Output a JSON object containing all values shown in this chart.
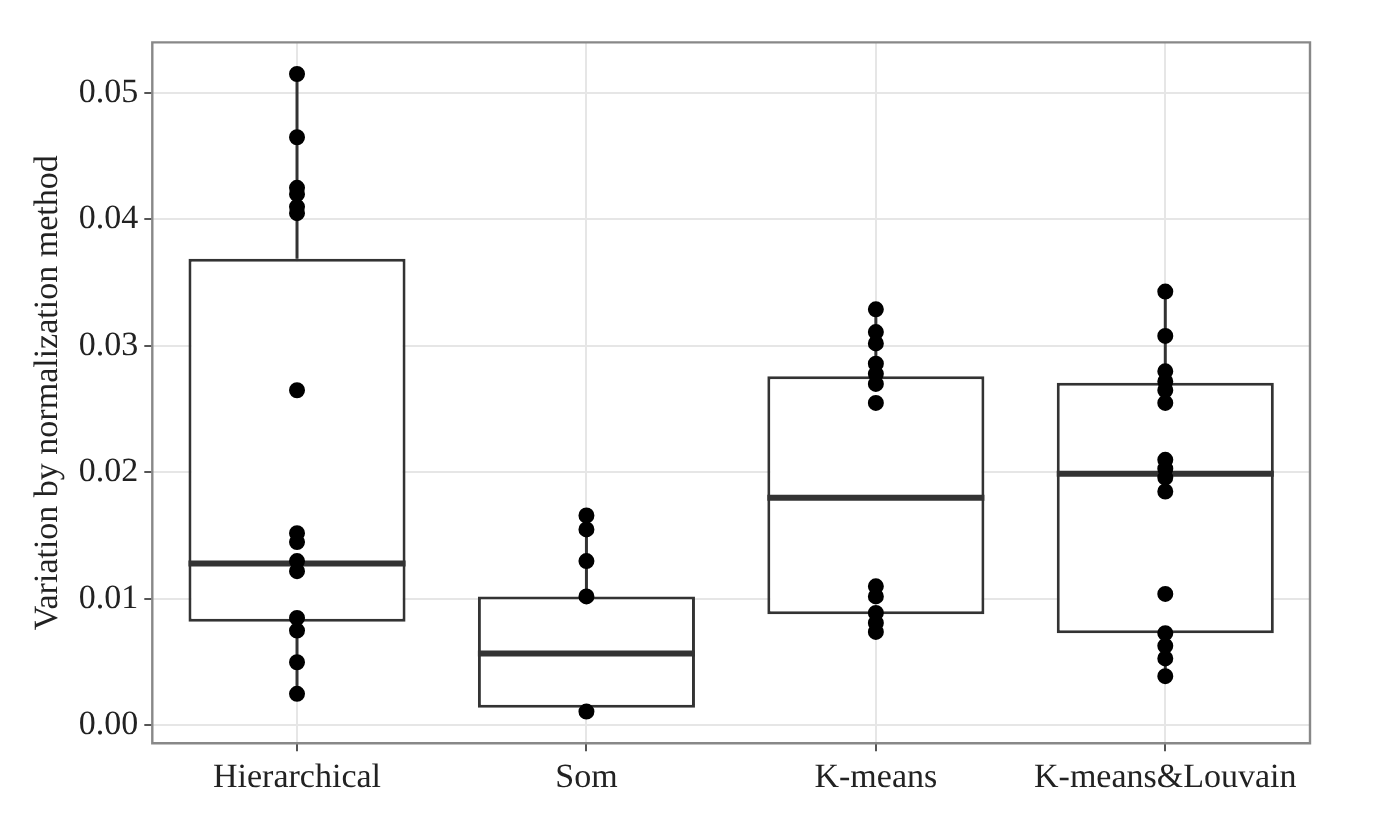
{
  "chart_data": {
    "type": "box",
    "ylabel": "Variation by normalization method",
    "categories": [
      "Hierarchical",
      "Som",
      "K-means",
      "K-means&Louvain"
    ],
    "boxes": [
      {
        "low": 0.0025,
        "q1": 0.0082,
        "median": 0.0128,
        "q3": 0.0369,
        "high": 0.0515
      },
      {
        "low": 0.0011,
        "q1": 0.0014,
        "median": 0.0057,
        "q3": 0.0102,
        "high": 0.0166
      },
      {
        "low": 0.0074,
        "q1": 0.0088,
        "median": 0.018,
        "q3": 0.0276,
        "high": 0.0329
      },
      {
        "low": 0.0039,
        "q1": 0.0073,
        "median": 0.0199,
        "q3": 0.0271,
        "high": 0.0343
      }
    ],
    "series": [
      {
        "type": "scatter",
        "color": "#000000",
        "x": [
          "Hierarchical",
          "Hierarchical",
          "Hierarchical",
          "Hierarchical",
          "Hierarchical",
          "Hierarchical",
          "Hierarchical",
          "Hierarchical",
          "Hierarchical",
          "Hierarchical",
          "Hierarchical",
          "Hierarchical",
          "Hierarchical",
          "Hierarchical",
          "Hierarchical",
          "Som",
          "Som",
          "Som",
          "Som",
          "Som",
          "K-means",
          "K-means",
          "K-means",
          "K-means",
          "K-means",
          "K-means",
          "K-means",
          "K-means",
          "K-means",
          "K-means",
          "K-means",
          "K-means",
          "K-means&Louvain",
          "K-means&Louvain",
          "K-means&Louvain",
          "K-means&Louvain",
          "K-means&Louvain",
          "K-means&Louvain",
          "K-means&Louvain",
          "K-means&Louvain",
          "K-means&Louvain",
          "K-means&Louvain",
          "K-means&Louvain",
          "K-means&Louvain",
          "K-means&Louvain",
          "K-means&Louvain",
          "K-means&Louvain"
        ],
        "values": [
          0.0515,
          0.0465,
          0.0425,
          0.042,
          0.041,
          0.0405,
          0.0265,
          0.0152,
          0.0145,
          0.013,
          0.0122,
          0.0085,
          0.0075,
          0.005,
          0.0025,
          0.0166,
          0.0155,
          0.013,
          0.0102,
          0.0011,
          0.0329,
          0.0311,
          0.0302,
          0.0286,
          0.0278,
          0.027,
          0.0255,
          0.011,
          0.0102,
          0.0089,
          0.0081,
          0.0074,
          0.0343,
          0.0308,
          0.028,
          0.0272,
          0.0265,
          0.0255,
          0.021,
          0.0203,
          0.0196,
          0.0185,
          0.0104,
          0.0073,
          0.0063,
          0.0053,
          0.0039
        ]
      }
    ],
    "ylim": [
      -0.0014,
      0.054
    ],
    "yticks": [
      {
        "value": 0,
        "label": "0.00"
      },
      {
        "value": 0.01,
        "label": "0.01"
      },
      {
        "value": 0.02,
        "label": "0.02"
      },
      {
        "value": 0.03,
        "label": "0.03"
      },
      {
        "value": 0.04,
        "label": "0.04"
      },
      {
        "value": 0.05,
        "label": "0.05"
      }
    ],
    "grid": true,
    "legend": false,
    "marker": "circle"
  }
}
